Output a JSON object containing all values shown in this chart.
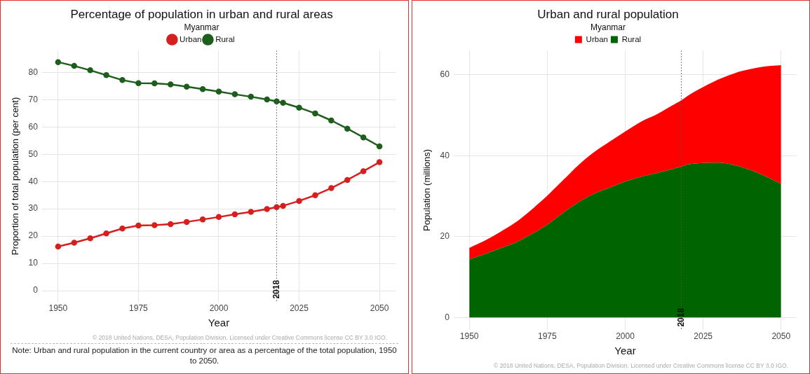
{
  "chart_data": [
    {
      "type": "line",
      "title": "Percentage of population in urban and rural areas",
      "subtitle": "Myanmar",
      "xlabel": "Year",
      "ylabel": "Proportion of total population (per cent)",
      "x": [
        1950,
        1955,
        1960,
        1965,
        1970,
        1975,
        1980,
        1985,
        1990,
        1995,
        2000,
        2005,
        2010,
        2015,
        2018,
        2020,
        2025,
        2030,
        2035,
        2040,
        2045,
        2050
      ],
      "series": [
        {
          "name": "Urban",
          "color": "#d71f1f",
          "values": [
            16.2,
            17.6,
            19.2,
            21.0,
            22.8,
            23.9,
            24.0,
            24.4,
            25.2,
            26.1,
            27.0,
            28.0,
            28.9,
            29.9,
            30.6,
            31.1,
            32.9,
            35.0,
            37.6,
            40.6,
            43.8,
            47.1
          ]
        },
        {
          "name": "Rural",
          "color": "#1d5e1d",
          "values": [
            83.8,
            82.4,
            80.8,
            79.0,
            77.2,
            76.1,
            76.0,
            75.6,
            74.8,
            73.9,
            73.0,
            72.0,
            71.1,
            70.1,
            69.4,
            68.9,
            67.1,
            65.0,
            62.4,
            59.4,
            56.2,
            52.9
          ]
        }
      ],
      "xlim": [
        1945,
        2055
      ],
      "xticks": [
        1950,
        1975,
        2000,
        2025,
        2050
      ],
      "ylim": [
        -4,
        88
      ],
      "yticks": [
        0,
        10,
        20,
        30,
        40,
        50,
        60,
        70,
        80
      ],
      "ref_lines": [
        {
          "axis": "x",
          "value": 2018,
          "label": "2018",
          "color": "#555555",
          "line_style": "dotted"
        }
      ],
      "grid": true,
      "legend": "top",
      "marker": "circle",
      "line_style": "solid",
      "annotations": [
        "© 2018 United Nations, DESA, Population Division. Licensed under Creative Commons license CC BY 3.0 IGO.",
        "Note: Urban and rural population in the current country or area as a percentage of the total population, 1950 to 2050."
      ]
    },
    {
      "type": "area",
      "title": "Urban and rural population",
      "subtitle": "Myanmar",
      "xlabel": "Year",
      "ylabel": "Population (millions)",
      "stacked": true,
      "x": [
        1950,
        1955,
        1960,
        1965,
        1970,
        1975,
        1980,
        1985,
        1990,
        1995,
        2000,
        2005,
        2010,
        2015,
        2018,
        2020,
        2025,
        2030,
        2035,
        2040,
        2045,
        2050
      ],
      "series": [
        {
          "name": "Rural",
          "color": "#006400",
          "values": [
            14.4,
            15.7,
            17.1,
            18.6,
            20.6,
            22.9,
            25.8,
            28.5,
            30.6,
            32.1,
            33.6,
            34.8,
            35.7,
            36.7,
            37.3,
            37.8,
            38.2,
            38.3,
            37.7,
            36.5,
            34.9,
            33.0
          ]
        },
        {
          "name": "Urban",
          "color": "#ff0000",
          "values": [
            2.8,
            3.3,
            4.1,
            5.0,
            6.1,
            7.2,
            8.1,
            9.2,
            10.3,
            11.4,
            12.4,
            13.6,
            14.5,
            15.7,
            16.4,
            17.0,
            18.8,
            20.6,
            22.7,
            24.9,
            27.2,
            29.4
          ]
        }
      ],
      "xlim": [
        1945,
        2055
      ],
      "xticks": [
        1950,
        1975,
        2000,
        2025,
        2050
      ],
      "ylim": [
        -3,
        66
      ],
      "yticks": [
        0,
        20,
        40,
        60
      ],
      "ref_lines": [
        {
          "axis": "x",
          "value": 2018,
          "label": "2018",
          "color": "#555555",
          "line_style": "dotted"
        }
      ],
      "grid": true,
      "legend": "top",
      "marker": "none",
      "annotations": [
        "© 2018 United Nations, DESA, Population Division. Licensed under Creative Commons license CC BY 3.0 IGO."
      ]
    }
  ]
}
